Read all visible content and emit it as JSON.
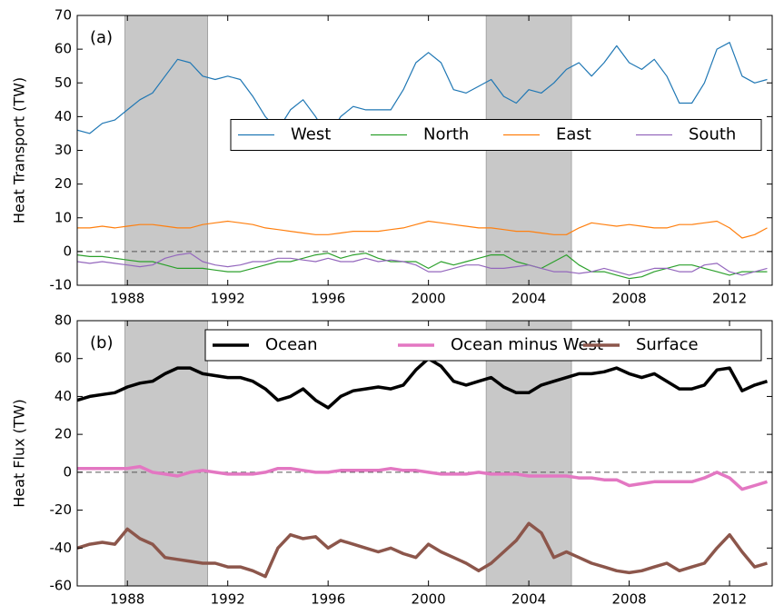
{
  "chart_data": [
    {
      "type": "line",
      "panel_label": "(a)",
      "ylabel": "Heat Transport (TW)",
      "x": [
        1986,
        1986.5,
        1987,
        1987.5,
        1988,
        1988.5,
        1989,
        1989.5,
        1990,
        1990.5,
        1991,
        1991.5,
        1992,
        1992.5,
        1993,
        1993.5,
        1994,
        1994.5,
        1995,
        1995.5,
        1996,
        1996.5,
        1997,
        1997.5,
        1998,
        1998.5,
        1999,
        1999.5,
        2000,
        2000.5,
        2001,
        2001.5,
        2002,
        2002.5,
        2003,
        2003.5,
        2004,
        2004.5,
        2005,
        2005.5,
        2006,
        2006.5,
        2007,
        2007.5,
        2008,
        2008.5,
        2009,
        2009.5,
        2010,
        2010.5,
        2011,
        2011.5,
        2012,
        2012.5,
        2013,
        2013.5
      ],
      "series": [
        {
          "name": "West",
          "color": "#1f77b4",
          "values": [
            36,
            35,
            38,
            39,
            42,
            45,
            47,
            52,
            57,
            56,
            52,
            51,
            52,
            51,
            46,
            40,
            36,
            42,
            45,
            40,
            34,
            40,
            43,
            42,
            42,
            42,
            48,
            56,
            59,
            56,
            48,
            47,
            49,
            51,
            46,
            44,
            48,
            47,
            50,
            54,
            56,
            52,
            56,
            61,
            56,
            54,
            57,
            52,
            44,
            44,
            50,
            60,
            62,
            52,
            50,
            51
          ]
        },
        {
          "name": "North",
          "color": "#2ca02c",
          "values": [
            -1,
            -1.5,
            -1.5,
            -2,
            -2.5,
            -3,
            -3,
            -4,
            -5,
            -5,
            -5,
            -5.5,
            -6,
            -6,
            -5,
            -4,
            -3,
            -3,
            -2,
            -1,
            -0.5,
            -2,
            -1,
            -0.5,
            -2,
            -3,
            -3,
            -3,
            -5,
            -3,
            -4,
            -3,
            -2,
            -1,
            -1,
            -3,
            -4,
            -5,
            -3,
            -1,
            -4,
            -6,
            -6,
            -7,
            -8,
            -7.5,
            -6,
            -5,
            -4,
            -4,
            -5,
            -6,
            -7,
            -6,
            -6,
            -6
          ]
        },
        {
          "name": "East",
          "color": "#ff7f0e",
          "values": [
            7,
            7,
            7.5,
            7,
            7.5,
            8,
            8,
            7.5,
            7,
            7,
            8,
            8.5,
            9,
            8.5,
            8,
            7,
            6.5,
            6,
            5.5,
            5,
            5,
            5.5,
            6,
            6,
            6,
            6.5,
            7,
            8,
            9,
            8.5,
            8,
            7.5,
            7,
            7,
            6.5,
            6,
            6,
            5.5,
            5,
            5,
            7,
            8.5,
            8,
            7.5,
            8,
            7.5,
            7,
            7,
            8,
            8,
            8.5,
            9,
            7,
            4,
            5,
            7
          ]
        },
        {
          "name": "South",
          "color": "#9467bd",
          "values": [
            -3,
            -3.5,
            -3,
            -3.5,
            -4,
            -4.5,
            -4,
            -2,
            -1,
            -0.5,
            -3,
            -4,
            -4.5,
            -4,
            -3,
            -3,
            -2,
            -2,
            -2.5,
            -3,
            -2,
            -3,
            -3,
            -2,
            -3,
            -2.5,
            -3,
            -4,
            -6,
            -6,
            -5,
            -4,
            -4,
            -5,
            -5,
            -4.5,
            -4,
            -5,
            -6,
            -6,
            -6.5,
            -6,
            -5,
            -6,
            -7,
            -6,
            -5,
            -5,
            -6,
            -6,
            -4,
            -3.5,
            -6,
            -7,
            -6,
            -5
          ]
        }
      ],
      "linewidth": 1.2,
      "legend": "center right",
      "hline": 0,
      "shaded_spans": [
        [
          1987.9,
          1991.2
        ],
        [
          2002.3,
          2005.7
        ]
      ],
      "xlim": [
        1986,
        2013.7
      ],
      "xticks": [
        1988,
        1992,
        1996,
        2000,
        2004,
        2008,
        2012
      ],
      "ylim": [
        -10,
        70
      ],
      "yticks": [
        -10,
        0,
        10,
        20,
        30,
        40,
        50,
        60,
        70
      ]
    },
    {
      "type": "line",
      "panel_label": "(b)",
      "ylabel": "Heat Flux (TW)",
      "x": [
        1986,
        1986.5,
        1987,
        1987.5,
        1988,
        1988.5,
        1989,
        1989.5,
        1990,
        1990.5,
        1991,
        1991.5,
        1992,
        1992.5,
        1993,
        1993.5,
        1994,
        1994.5,
        1995,
        1995.5,
        1996,
        1996.5,
        1997,
        1997.5,
        1998,
        1998.5,
        1999,
        1999.5,
        2000,
        2000.5,
        2001,
        2001.5,
        2002,
        2002.5,
        2003,
        2003.5,
        2004,
        2004.5,
        2005,
        2005.5,
        2006,
        2006.5,
        2007,
        2007.5,
        2008,
        2008.5,
        2009,
        2009.5,
        2010,
        2010.5,
        2011,
        2011.5,
        2012,
        2012.5,
        2013,
        2013.5
      ],
      "series": [
        {
          "name": "Ocean",
          "color": "#000000",
          "values": [
            38,
            40,
            41,
            42,
            45,
            47,
            48,
            52,
            55,
            55,
            52,
            51,
            50,
            50,
            48,
            44,
            38,
            40,
            44,
            38,
            34,
            40,
            43,
            44,
            45,
            44,
            46,
            54,
            60,
            56,
            48,
            46,
            48,
            50,
            45,
            42,
            42,
            46,
            48,
            50,
            52,
            52,
            53,
            55,
            52,
            50,
            52,
            48,
            44,
            44,
            46,
            54,
            55,
            43,
            46,
            48
          ]
        },
        {
          "name": "Ocean minus West",
          "color": "#e377c2",
          "values": [
            2,
            2,
            2,
            2,
            2,
            3,
            0,
            -1,
            -2,
            0,
            1,
            0,
            -1,
            -1,
            -1,
            0,
            2,
            2,
            1,
            0,
            0,
            1,
            1,
            1,
            1,
            2,
            1,
            1,
            0,
            -1,
            -1,
            -1,
            0,
            -1,
            -1,
            -1,
            -2,
            -2,
            -2,
            -2,
            -3,
            -3,
            -4,
            -4,
            -7,
            -6,
            -5,
            -5,
            -5,
            -5,
            -3,
            0,
            -3,
            -9,
            -7,
            -5
          ]
        },
        {
          "name": "Surface",
          "color": "#8c564b",
          "values": [
            -40,
            -38,
            -37,
            -38,
            -30,
            -35,
            -38,
            -45,
            -46,
            -47,
            -48,
            -48,
            -50,
            -50,
            -52,
            -55,
            -40,
            -33,
            -35,
            -34,
            -40,
            -36,
            -38,
            -40,
            -42,
            -40,
            -43,
            -45,
            -38,
            -42,
            -45,
            -48,
            -52,
            -48,
            -42,
            -36,
            -27,
            -32,
            -45,
            -42,
            -45,
            -48,
            -50,
            -52,
            -53,
            -52,
            -50,
            -48,
            -52,
            -50,
            -48,
            -40,
            -33,
            -42,
            -50,
            -48
          ]
        }
      ],
      "linewidth": 3.5,
      "legend": "upper right",
      "hline": 0,
      "shaded_spans": [
        [
          1987.9,
          1991.2
        ],
        [
          2002.3,
          2005.7
        ]
      ],
      "xlim": [
        1986,
        2013.7
      ],
      "xticks": [
        1988,
        1992,
        1996,
        2000,
        2004,
        2008,
        2012
      ],
      "ylim": [
        -60,
        80
      ],
      "yticks": [
        -60,
        -40,
        -20,
        0,
        20,
        40,
        60,
        80
      ]
    }
  ]
}
